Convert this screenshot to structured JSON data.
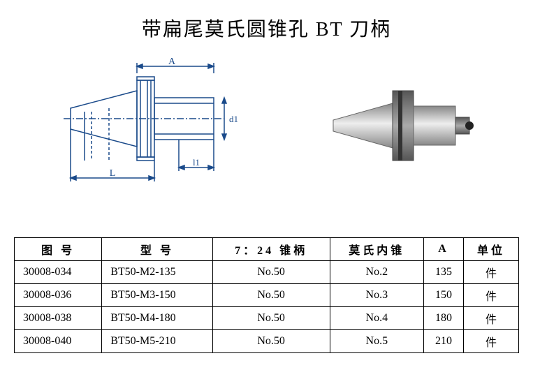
{
  "title": "带扁尾莫氏圆锥孔 BT 刀柄",
  "diagram": {
    "labels": {
      "A": "A",
      "d1": "d1",
      "L": "L",
      "l1": "l1"
    },
    "line_color": "#1a4a8a",
    "photo_body": "#888888",
    "photo_dark": "#555555"
  },
  "table": {
    "columns": [
      "图 号",
      "型 号",
      "7：24 锥柄",
      "莫氏内锥",
      "A",
      "单位"
    ],
    "rows": [
      [
        "30008-034",
        "BT50-M2-135",
        "No.50",
        "No.2",
        "135",
        "件"
      ],
      [
        "30008-036",
        "BT50-M3-150",
        "No.50",
        "No.3",
        "150",
        "件"
      ],
      [
        "30008-038",
        "BT50-M4-180",
        "No.50",
        "No.4",
        "180",
        "件"
      ],
      [
        "30008-040",
        "BT50-M5-210",
        "No.50",
        "No.5",
        "210",
        "件"
      ]
    ],
    "col_align": [
      "left",
      "left",
      "center",
      "center",
      "center",
      "center"
    ]
  }
}
